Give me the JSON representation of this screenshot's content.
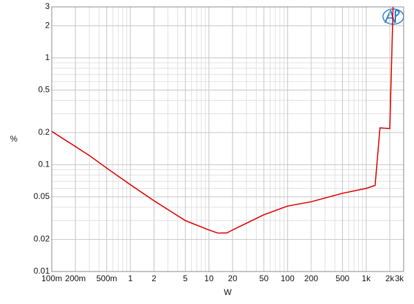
{
  "chart_data": {
    "type": "line",
    "xlabel": "W",
    "ylabel": "%",
    "x": [
      0.1,
      0.2,
      0.3,
      0.5,
      1,
      2,
      5,
      10,
      13,
      17,
      20,
      30,
      50,
      100,
      200,
      500,
      1000,
      1300,
      1500,
      2000,
      2200
    ],
    "series": [
      {
        "color": "#e00000",
        "values": [
          0.205,
          0.148,
          0.122,
          0.093,
          0.065,
          0.046,
          0.03,
          0.0245,
          0.0229,
          0.023,
          0.0245,
          0.0283,
          0.034,
          0.041,
          0.045,
          0.054,
          0.06,
          0.064,
          0.221,
          0.218,
          3
        ]
      }
    ],
    "xlim": [
      0.1,
      3000
    ],
    "ylim": [
      0.01,
      3
    ],
    "xlog": true,
    "ylog": true,
    "grid": true,
    "xticks": [
      {
        "value": 0.1,
        "label": "100m"
      },
      {
        "value": 0.2,
        "label": "200m"
      },
      {
        "value": 0.5,
        "label": "500m"
      },
      1,
      2,
      5,
      10,
      20,
      50,
      100,
      200,
      500,
      {
        "value": 1000,
        "label": "1k"
      },
      {
        "value": 2000,
        "label": "2k"
      },
      {
        "value": 3000,
        "label": "3k"
      }
    ],
    "yticks": [
      0.01,
      0.02,
      0.05,
      0.1,
      0.2,
      0.5,
      1,
      2,
      3
    ]
  }
}
